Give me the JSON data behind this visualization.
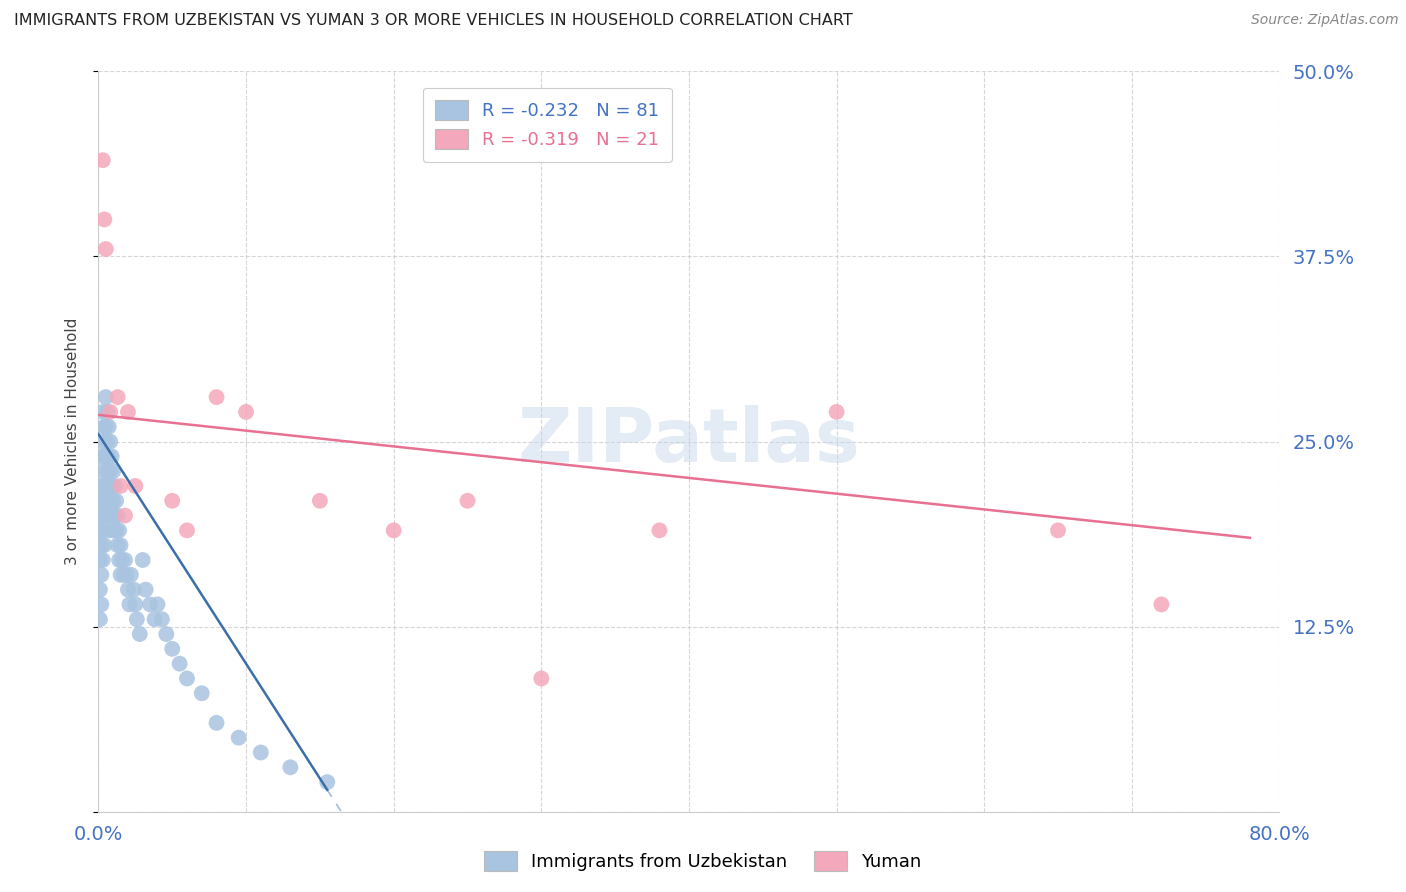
{
  "title": "IMMIGRANTS FROM UZBEKISTAN VS YUMAN 3 OR MORE VEHICLES IN HOUSEHOLD CORRELATION CHART",
  "source": "Source: ZipAtlas.com",
  "ylabel": "3 or more Vehicles in Household",
  "xlim": [
    0.0,
    0.8
  ],
  "ylim": [
    0.0,
    0.5
  ],
  "ytick_vals": [
    0.0,
    0.125,
    0.25,
    0.375,
    0.5
  ],
  "ytick_labels": [
    "",
    "12.5%",
    "25.0%",
    "37.5%",
    "50.0%"
  ],
  "xtick_vals": [
    0.0,
    0.1,
    0.2,
    0.3,
    0.4,
    0.5,
    0.6,
    0.7,
    0.8
  ],
  "xtick_labels": [
    "0.0%",
    "",
    "",
    "",
    "",
    "",
    "",
    "",
    "80.0%"
  ],
  "blue_R": -0.232,
  "blue_N": 81,
  "pink_R": -0.319,
  "pink_N": 21,
  "blue_color": "#a8c4e0",
  "pink_color": "#f4a8bb",
  "blue_line_color": "#3b6faa",
  "pink_line_color": "#e87090",
  "watermark": "ZIPatlas",
  "legend_blue_label": "Immigrants from Uzbekistan",
  "legend_pink_label": "Yuman",
  "blue_line_x0": 0.0,
  "blue_line_y0": 0.255,
  "blue_line_slope": -1.55,
  "blue_line_solid_end": 0.155,
  "pink_line_x0": 0.0,
  "pink_line_y0": 0.268,
  "pink_line_x1": 0.78,
  "pink_line_y1": 0.185,
  "blue_scatter_x": [
    0.001,
    0.001,
    0.001,
    0.001,
    0.001,
    0.002,
    0.002,
    0.002,
    0.002,
    0.002,
    0.002,
    0.003,
    0.003,
    0.003,
    0.003,
    0.003,
    0.003,
    0.004,
    0.004,
    0.004,
    0.004,
    0.004,
    0.005,
    0.005,
    0.005,
    0.005,
    0.005,
    0.006,
    0.006,
    0.006,
    0.006,
    0.007,
    0.007,
    0.007,
    0.007,
    0.008,
    0.008,
    0.008,
    0.009,
    0.009,
    0.009,
    0.01,
    0.01,
    0.01,
    0.011,
    0.011,
    0.012,
    0.012,
    0.013,
    0.013,
    0.014,
    0.014,
    0.015,
    0.015,
    0.016,
    0.017,
    0.018,
    0.019,
    0.02,
    0.021,
    0.022,
    0.024,
    0.025,
    0.026,
    0.028,
    0.03,
    0.032,
    0.035,
    0.038,
    0.04,
    0.043,
    0.046,
    0.05,
    0.055,
    0.06,
    0.07,
    0.08,
    0.095,
    0.11,
    0.13,
    0.155
  ],
  "blue_scatter_y": [
    0.21,
    0.19,
    0.17,
    0.15,
    0.13,
    0.24,
    0.22,
    0.2,
    0.18,
    0.16,
    0.14,
    0.27,
    0.25,
    0.23,
    0.21,
    0.19,
    0.17,
    0.26,
    0.24,
    0.22,
    0.2,
    0.18,
    0.28,
    0.26,
    0.24,
    0.22,
    0.2,
    0.27,
    0.25,
    0.23,
    0.21,
    0.26,
    0.24,
    0.22,
    0.19,
    0.25,
    0.23,
    0.21,
    0.24,
    0.22,
    0.2,
    0.23,
    0.21,
    0.19,
    0.22,
    0.2,
    0.21,
    0.19,
    0.2,
    0.18,
    0.19,
    0.17,
    0.18,
    0.16,
    0.17,
    0.16,
    0.17,
    0.16,
    0.15,
    0.14,
    0.16,
    0.15,
    0.14,
    0.13,
    0.12,
    0.17,
    0.15,
    0.14,
    0.13,
    0.14,
    0.13,
    0.12,
    0.11,
    0.1,
    0.09,
    0.08,
    0.06,
    0.05,
    0.04,
    0.03,
    0.02
  ],
  "pink_scatter_x": [
    0.003,
    0.004,
    0.005,
    0.008,
    0.013,
    0.015,
    0.018,
    0.02,
    0.025,
    0.05,
    0.06,
    0.08,
    0.1,
    0.15,
    0.2,
    0.25,
    0.3,
    0.38,
    0.5,
    0.65,
    0.72
  ],
  "pink_scatter_y": [
    0.44,
    0.4,
    0.38,
    0.27,
    0.28,
    0.22,
    0.2,
    0.27,
    0.22,
    0.21,
    0.19,
    0.28,
    0.27,
    0.21,
    0.19,
    0.21,
    0.09,
    0.19,
    0.27,
    0.19,
    0.14
  ]
}
